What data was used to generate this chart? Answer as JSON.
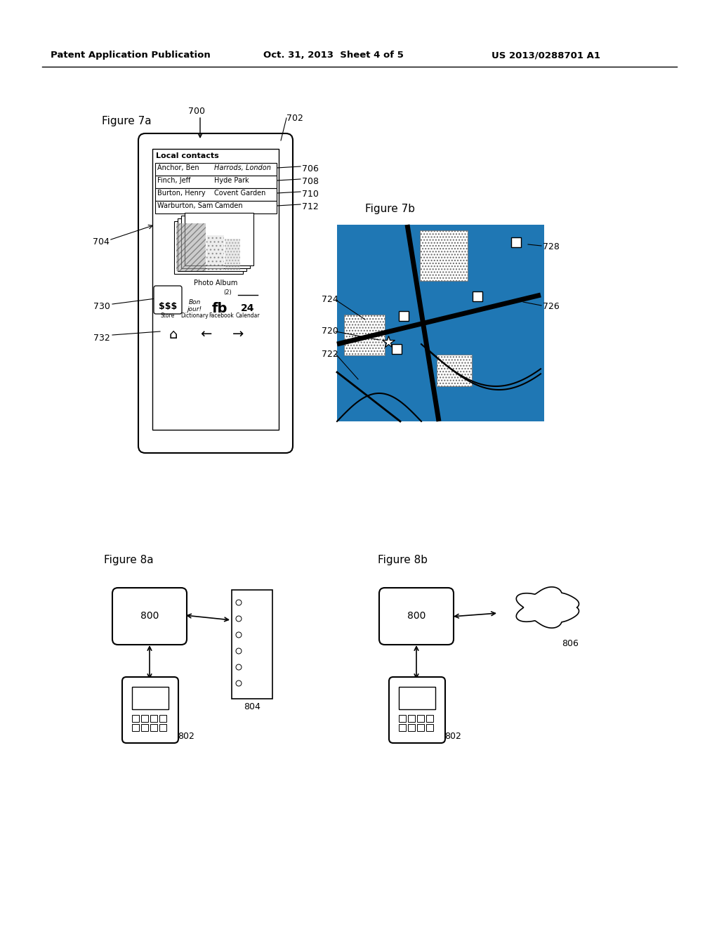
{
  "title_left": "Patent Application Publication",
  "title_mid": "Oct. 31, 2013  Sheet 4 of 5",
  "title_right": "US 2013/0288701 A1",
  "fig7a_label": "Figure 7a",
  "fig7b_label": "Figure 7b",
  "fig8a_label": "Figure 8a",
  "fig8b_label": "Figure 8b",
  "contacts_header": "Local contacts",
  "contacts": [
    [
      "Anchor, Ben",
      "Harrods, London"
    ],
    [
      "Finch, Jeff",
      "Hyde Park"
    ],
    [
      "Burton, Henry",
      "Covent Garden"
    ],
    [
      "Warburton, Sam",
      "Camden"
    ]
  ],
  "contact_italic": [
    true,
    false,
    false,
    false
  ],
  "app_icons": [
    "$$$",
    "Bon\njour!",
    "fb",
    "24"
  ],
  "app_labels": [
    "Store",
    "Dictionary",
    "Facebook",
    "Calendar"
  ],
  "background_color": "#ffffff"
}
